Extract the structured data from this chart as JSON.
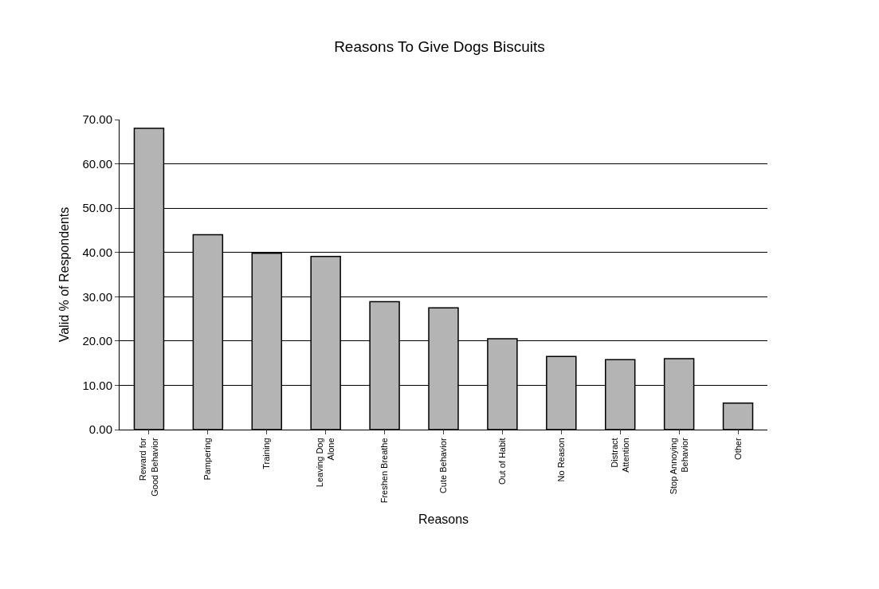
{
  "chart_data": {
    "type": "bar",
    "title": "Reasons To Give Dogs Biscuits",
    "xlabel": "Reasons",
    "ylabel": "Valid % of Respondents",
    "categories": [
      "Reward for Good Behavior",
      "Pampering",
      "Training",
      "Leaving Dog Alone",
      "Freshen Breathe",
      "Cute Behavior",
      "Out of Habit",
      "No Reason",
      "Distract Attention",
      "Stop Annoying Behavior",
      "Other"
    ],
    "values": [
      68,
      44,
      39.8,
      39.1,
      28.9,
      27.5,
      20.5,
      16.5,
      15.8,
      16,
      6
    ],
    "color": "#b4b4b4",
    "ylim": [
      0,
      70
    ],
    "yticks": [
      {
        "value": 0,
        "label": "0.00"
      },
      {
        "value": 10,
        "label": "10.00"
      },
      {
        "value": 20,
        "label": "20.00"
      },
      {
        "value": 30,
        "label": "30.00"
      },
      {
        "value": 40,
        "label": "40.00"
      },
      {
        "value": 50,
        "label": "50.00"
      },
      {
        "value": 60,
        "label": "60.00"
      },
      {
        "value": 70,
        "label": "70.00"
      }
    ],
    "grid": "y"
  }
}
